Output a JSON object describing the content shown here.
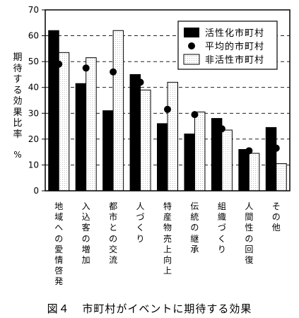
{
  "chart_data": {
    "type": "bar",
    "title": "",
    "ylabel": "期待する効果比率",
    "yunit": "%",
    "ylim": [
      0,
      70
    ],
    "yticks": [
      0,
      10,
      20,
      30,
      40,
      50,
      60,
      70
    ],
    "grid": "dashed-horizontal",
    "legend_position": "top-right",
    "categories": [
      "地域への愛情啓発",
      "入込客の増加",
      "都市との交流",
      "人づくり",
      "特産物売上向上",
      "伝統の継承",
      "組織づくり",
      "人間性の回復",
      "その他"
    ],
    "series": [
      {
        "name": "活性化市町村",
        "style": "bar-black",
        "color": "#000000",
        "values": [
          62,
          41.5,
          31,
          45,
          26,
          22,
          28,
          16,
          24.5
        ]
      },
      {
        "name": "平均的市町村",
        "style": "dot",
        "color": "#000000",
        "values": [
          49,
          47.5,
          46,
          42,
          31.5,
          29.5,
          24,
          15.5,
          16.5
        ]
      },
      {
        "name": "非活性市町村",
        "style": "bar-dotted",
        "color": "#ffffff",
        "values": [
          53.5,
          51.5,
          62,
          39,
          42,
          30.5,
          23.5,
          14.5,
          10.5
        ]
      }
    ]
  },
  "caption": {
    "figure_no": "図４",
    "text": "市町村がイベントに期待する効果"
  }
}
